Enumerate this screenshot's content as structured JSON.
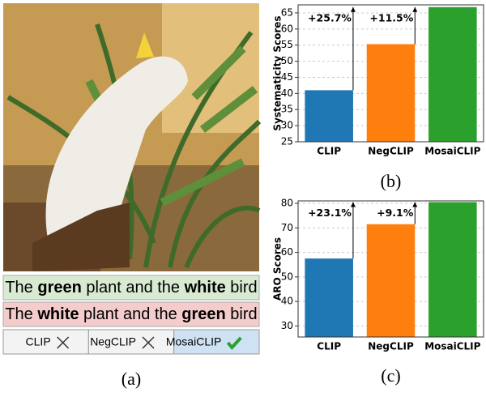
{
  "panel_a": {
    "label": "(a)",
    "captions": [
      {
        "color": "#d9ead3",
        "segments": [
          {
            "text": "The ",
            "bold": false
          },
          {
            "text": "green",
            "bold": true
          },
          {
            "text": " plant and the ",
            "bold": false
          },
          {
            "text": "white",
            "bold": true
          },
          {
            "text": " bird",
            "bold": false
          }
        ]
      },
      {
        "color": "#f4cccc",
        "segments": [
          {
            "text": "The ",
            "bold": false
          },
          {
            "text": "white",
            "bold": true
          },
          {
            "text": " plant and the ",
            "bold": false
          },
          {
            "text": "green",
            "bold": true
          },
          {
            "text": " bird",
            "bold": false
          }
        ]
      }
    ],
    "models": [
      {
        "name": "CLIP",
        "correct": false
      },
      {
        "name": "NegCLIP",
        "correct": false
      },
      {
        "name": "MosaiCLIP",
        "correct": true
      }
    ]
  },
  "chart_data": [
    {
      "type": "bar",
      "label": "(b)",
      "ylabel": "Systematicity Scores",
      "categories": [
        "CLIP",
        "NegCLIP",
        "MosaiCLIP"
      ],
      "values": [
        41,
        55.3,
        66.8
      ],
      "colors": [
        "#1f77b4",
        "#ff7f0e",
        "#2ca02c"
      ],
      "annotations": [
        "+25.7%",
        "+11.5%"
      ],
      "ylim": [
        25,
        67.5
      ],
      "yticks": [
        25,
        30,
        35,
        40,
        45,
        50,
        55,
        60,
        65
      ],
      "grid": true
    },
    {
      "type": "bar",
      "label": "(c)",
      "ylabel": "ARO Scores",
      "categories": [
        "CLIP",
        "NegCLIP",
        "MosaiCLIP"
      ],
      "values": [
        57.5,
        71.5,
        80.5
      ],
      "colors": [
        "#1f77b4",
        "#ff7f0e",
        "#2ca02c"
      ],
      "annotations": [
        "+23.1%",
        "+9.1%"
      ],
      "ylim": [
        25.5,
        81
      ],
      "yticks": [
        30,
        40,
        50,
        60,
        70,
        80
      ],
      "grid": true
    }
  ]
}
